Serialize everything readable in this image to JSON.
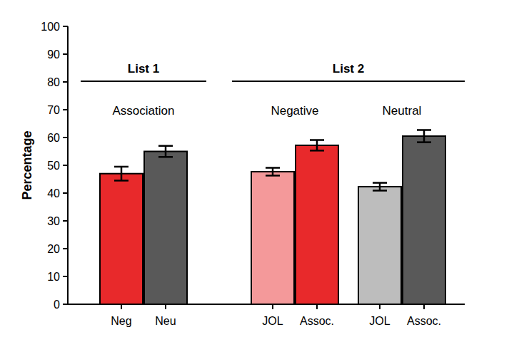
{
  "chart_data": {
    "type": "bar",
    "y_label": "Percentage",
    "ylim": [
      0,
      100
    ],
    "yticks": [
      0,
      10,
      20,
      30,
      40,
      50,
      60,
      70,
      80,
      90,
      100
    ],
    "groups": [
      {
        "label": "List 1",
        "subgroups": [
          {
            "label": "Association",
            "categories": [
              "Neg",
              "Neu"
            ],
            "values": [
              47,
              55
            ],
            "errors": [
              2.5,
              2
            ],
            "colors": [
              "#e8292b",
              "#595959"
            ]
          }
        ]
      },
      {
        "label": "List 2",
        "subgroups": [
          {
            "label": "Negative",
            "categories": [
              "JOL",
              "Assoc."
            ],
            "values": [
              47.7,
              57.2
            ],
            "errors": [
              1.4,
              1.9
            ],
            "colors": [
              "#f4999a",
              "#e8292b"
            ]
          },
          {
            "label": "Neutral",
            "categories": [
              "JOL",
              "Assoc."
            ],
            "values": [
              42.3,
              60.5
            ],
            "errors": [
              1.4,
              2.2
            ],
            "colors": [
              "#bdbdbd",
              "#595959"
            ]
          }
        ]
      }
    ]
  }
}
